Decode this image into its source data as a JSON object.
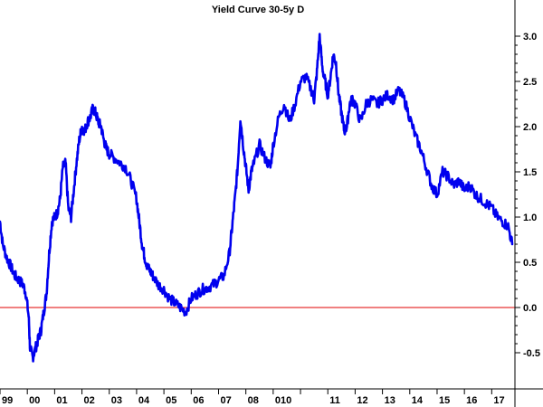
{
  "chart_data": {
    "type": "line",
    "title": "Yield Curve 30-5y D",
    "xlabel": "",
    "ylabel": "",
    "ylim": [
      -0.6,
      3.1
    ],
    "xlim": [
      1999.0,
      2017.85
    ],
    "y_ticks": [
      -0.5,
      0.0,
      0.5,
      1.0,
      1.5,
      2.0,
      2.5,
      3.0
    ],
    "y_tick_labels": [
      "-0.5",
      "0.0",
      "0.5",
      "1.0",
      "1.5",
      "2.0",
      "2.5",
      "3.0"
    ],
    "x_ticks": [
      1999,
      2000,
      2001,
      2002,
      2003,
      2004,
      2005,
      2006,
      2007,
      2008,
      2009,
      2010,
      2011,
      2012,
      2013,
      2014,
      2015,
      2016,
      2017
    ],
    "x_tick_labels": [
      "99",
      "00",
      "01",
      "02",
      "03",
      "04",
      "05",
      "06",
      "07",
      "08",
      "010",
      "",
      "11",
      "12",
      "13",
      "14",
      "15",
      "16",
      "17"
    ],
    "reference_line": {
      "y": 0.0,
      "color": "#e00000"
    },
    "grid": false,
    "colors": {
      "series": "#0000ee",
      "axis": "#000000"
    },
    "series": [
      {
        "x": [
          1999.0,
          1999.1,
          1999.25,
          1999.4,
          1999.55,
          1999.7,
          1999.85,
          1999.95,
          2000.05,
          2000.1,
          2000.2,
          2000.3,
          2000.4,
          2000.5,
          2000.6,
          2000.7,
          2000.8,
          2000.9,
          2001.0,
          2001.1,
          2001.2,
          2001.3,
          2001.4,
          2001.5,
          2001.6,
          2001.7,
          2001.8,
          2001.9,
          2002.0,
          2002.1,
          2002.2,
          2002.3,
          2002.4,
          2002.5,
          2002.6,
          2002.7,
          2002.8,
          2002.9,
          2003.0,
          2003.2,
          2003.4,
          2003.6,
          2003.8,
          2004.0,
          2004.1,
          2004.2,
          2004.3,
          2004.4,
          2004.5,
          2004.6,
          2004.8,
          2005.0,
          2005.2,
          2005.4,
          2005.6,
          2005.8,
          2006.0,
          2006.2,
          2006.4,
          2006.6,
          2006.8,
          2007.0,
          2007.2,
          2007.4,
          2007.5,
          2007.6,
          2007.7,
          2007.8,
          2007.9,
          2008.0,
          2008.1,
          2008.2,
          2008.3,
          2008.5,
          2008.7,
          2008.9,
          2009.0,
          2009.2,
          2009.4,
          2009.6,
          2009.8,
          2010.0,
          2010.2,
          2010.4,
          2010.5,
          2010.6,
          2010.7,
          2010.8,
          2010.9,
          2011.0,
          2011.1,
          2011.2,
          2011.3,
          2011.4,
          2011.5,
          2011.6,
          2011.7,
          2011.8,
          2011.9,
          2012.0,
          2012.2,
          2012.4,
          2012.6,
          2012.8,
          2013.0,
          2013.2,
          2013.4,
          2013.6,
          2013.8,
          2014.0,
          2014.2,
          2014.4,
          2014.6,
          2014.8,
          2015.0,
          2015.2,
          2015.4,
          2015.6,
          2015.8,
          2016.0,
          2016.2,
          2016.4,
          2016.6,
          2016.8,
          2017.0,
          2017.2,
          2017.4,
          2017.6,
          2017.75
        ],
        "y": [
          0.95,
          0.7,
          0.55,
          0.45,
          0.35,
          0.3,
          0.25,
          0.15,
          -0.1,
          -0.45,
          -0.55,
          -0.45,
          -0.35,
          -0.25,
          -0.05,
          0.15,
          0.6,
          0.95,
          1.0,
          1.05,
          1.2,
          1.55,
          1.6,
          1.1,
          1.0,
          1.3,
          1.6,
          1.85,
          2.0,
          1.95,
          2.05,
          2.1,
          2.2,
          2.15,
          2.05,
          2.0,
          1.85,
          1.75,
          1.7,
          1.65,
          1.6,
          1.55,
          1.4,
          1.2,
          0.95,
          0.7,
          0.55,
          0.45,
          0.4,
          0.35,
          0.25,
          0.2,
          0.1,
          0.05,
          0.0,
          -0.05,
          0.1,
          0.15,
          0.2,
          0.22,
          0.25,
          0.3,
          0.35,
          0.6,
          0.9,
          1.2,
          1.55,
          2.1,
          1.8,
          1.55,
          1.3,
          1.5,
          1.6,
          1.8,
          1.65,
          1.55,
          1.8,
          2.1,
          2.25,
          2.05,
          2.25,
          2.5,
          2.55,
          2.4,
          2.3,
          2.6,
          3.0,
          2.65,
          2.5,
          2.35,
          2.55,
          2.8,
          2.7,
          2.35,
          2.15,
          1.95,
          2.0,
          2.25,
          2.3,
          2.25,
          2.05,
          2.25,
          2.3,
          2.25,
          2.3,
          2.35,
          2.3,
          2.4,
          2.3,
          2.1,
          1.9,
          1.75,
          1.55,
          1.35,
          1.25,
          1.5,
          1.45,
          1.35,
          1.4,
          1.3,
          1.35,
          1.25,
          1.2,
          1.15,
          1.1,
          1.0,
          0.95,
          0.9,
          0.7
        ]
      }
    ]
  }
}
